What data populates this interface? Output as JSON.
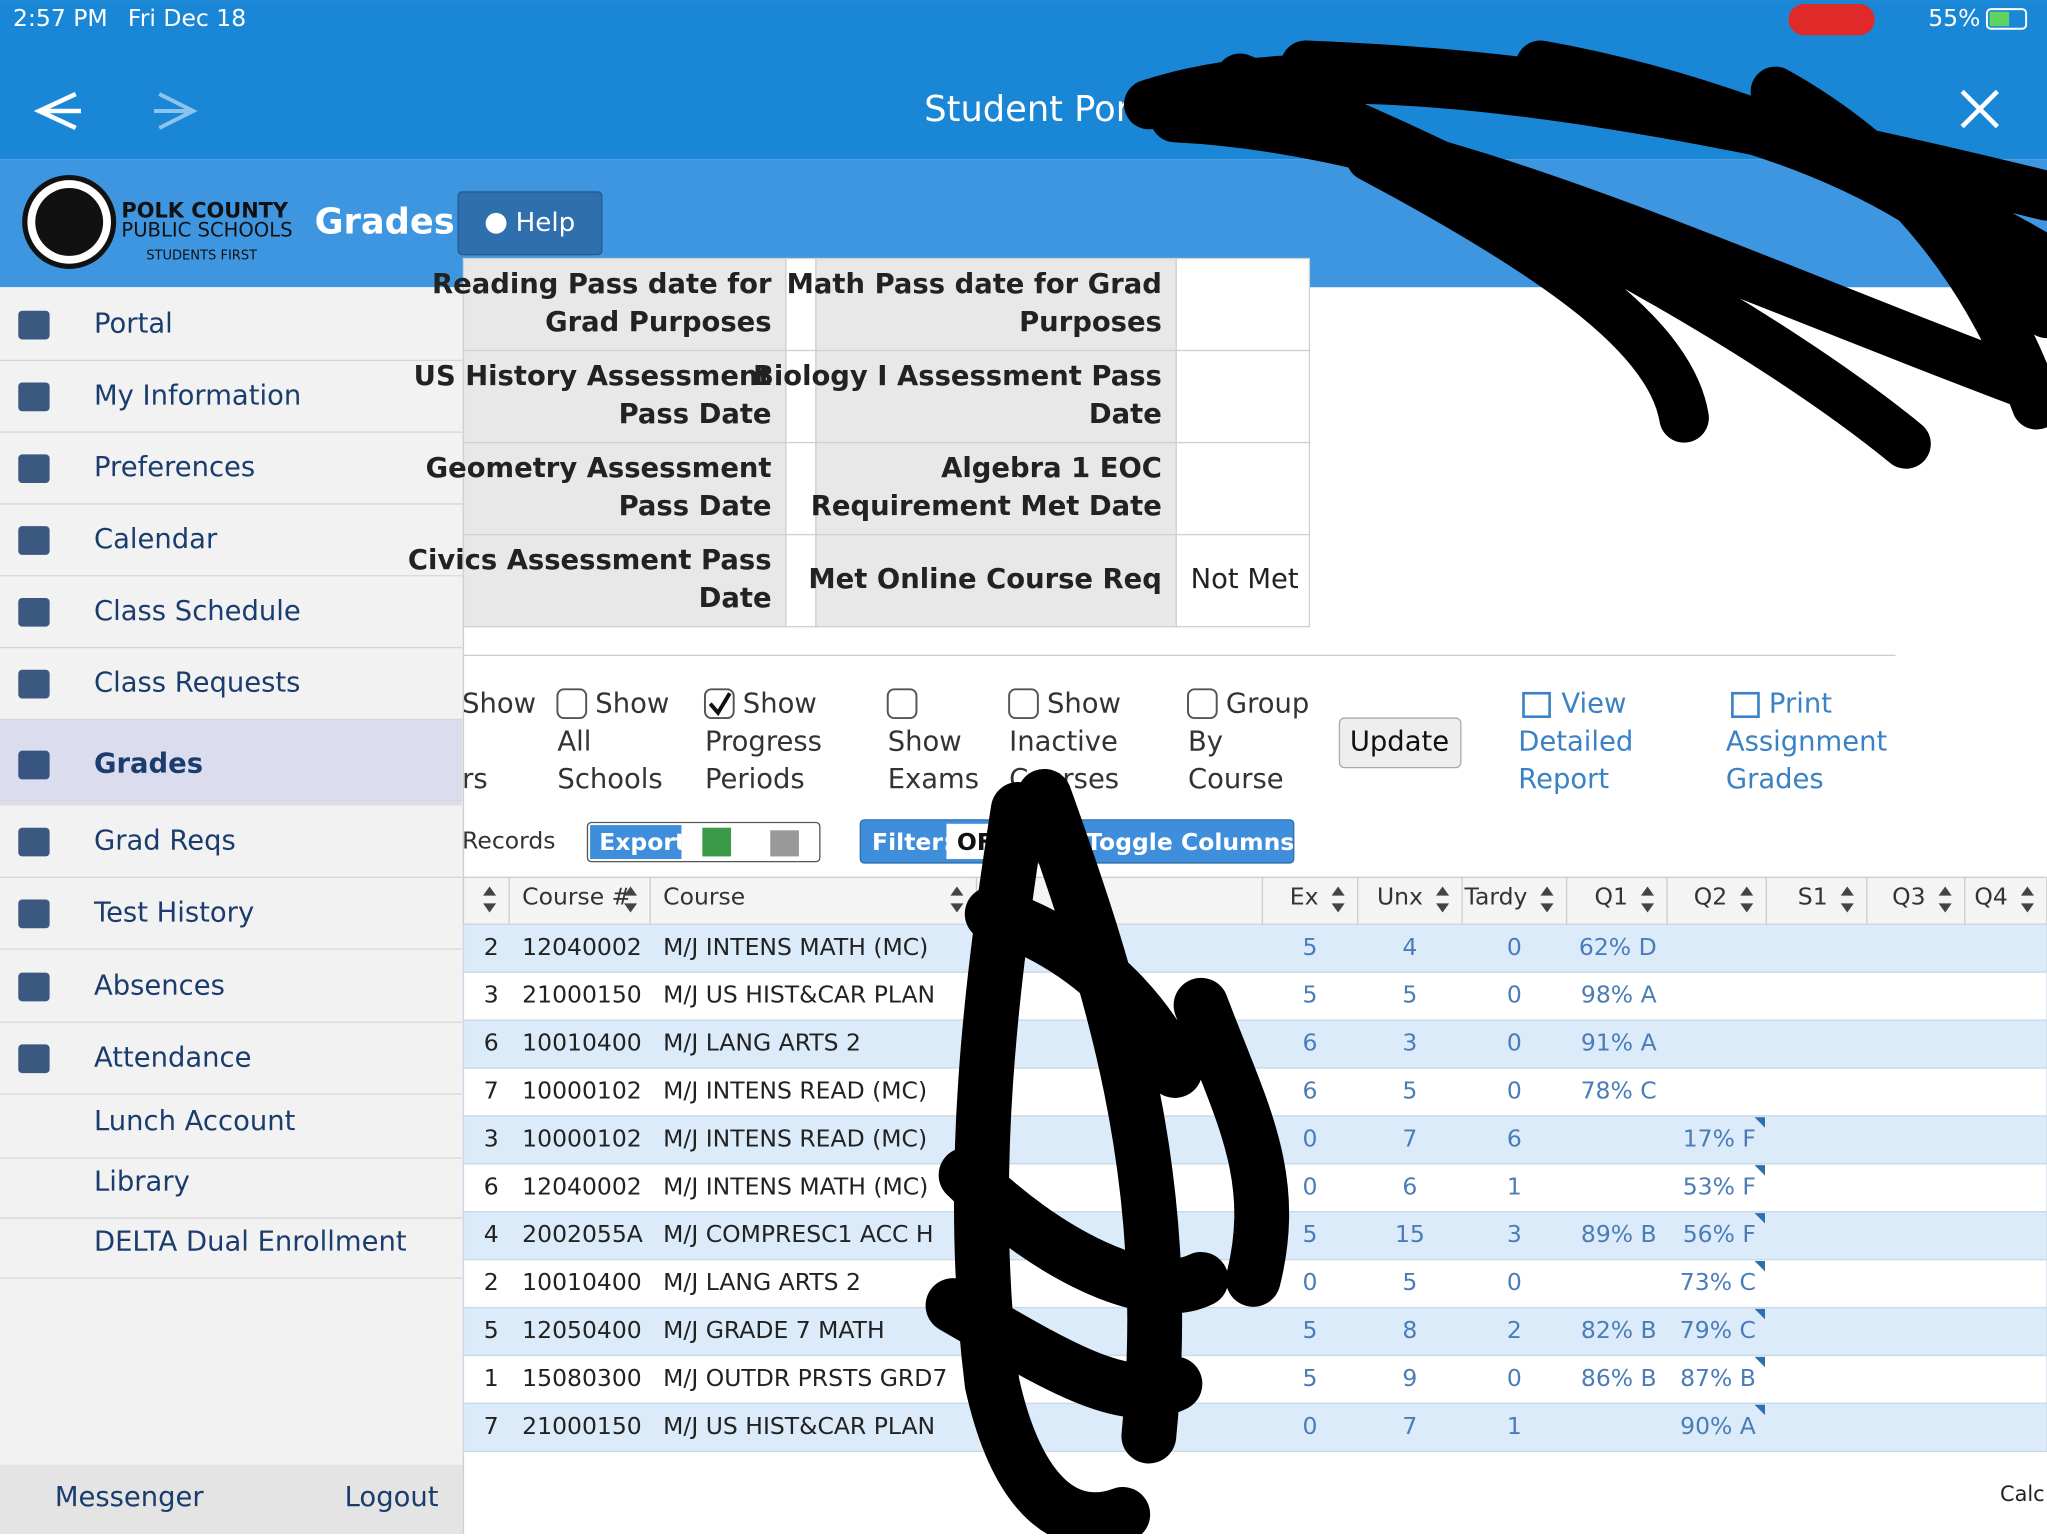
{
  "status": {
    "time": "2:57 PM",
    "date": "Fri Dec 18",
    "battery": "55%"
  },
  "header": {
    "title": "Student Porta"
  },
  "brand": {
    "line1": "POLK COUNTY",
    "line2": "PUBLIC SCHOOLS",
    "line3": "STUDENTS FIRST",
    "page_title": "Grades",
    "help": "Help"
  },
  "nav": [
    "Portal",
    "My Information",
    "Preferences",
    "Calendar",
    "Class Schedule",
    "Class Requests",
    "Grades",
    "Grad Reqs",
    "Test History",
    "Absences",
    "Attendance",
    "Lunch Account",
    "Library",
    "DELTA Dual Enrollment"
  ],
  "nav_active": 6,
  "footer": {
    "messenger": "Messenger",
    "logout": "Logout"
  },
  "assessments": [
    {
      "left": [
        "Reading Pass date for",
        "Grad Purposes"
      ],
      "right": [
        "Math Pass date for Grad",
        "Purposes"
      ],
      "right_value": null
    },
    {
      "left": [
        "US History Assessment",
        "Pass Date"
      ],
      "right": [
        "Biology I Assessment Pass",
        "Date"
      ],
      "right_value": null
    },
    {
      "left": [
        "Geometry Assessment",
        "Pass Date"
      ],
      "right": [
        "Algebra 1 EOC",
        "Requirement Met Date"
      ],
      "right_value": null
    },
    {
      "left": [
        "Civics Assessment Pass",
        "Date"
      ],
      "right": [
        "Met Online Course Req"
      ],
      "right_value": "Not Met"
    }
  ],
  "options": [
    {
      "lines": [
        "Show",
        "rs"
      ],
      "checked": null
    },
    {
      "lines": [
        "Show",
        "All",
        "Schools"
      ],
      "checked": false
    },
    {
      "lines": [
        "Show",
        "Progress",
        "Periods"
      ],
      "checked": true
    },
    {
      "lines": [
        "Show",
        "Exams"
      ],
      "checked": false
    },
    {
      "lines": [
        "Show",
        "Inactive",
        "Courses"
      ],
      "checked": false
    },
    {
      "lines": [
        "Group",
        "By",
        "Course"
      ],
      "checked": false
    }
  ],
  "update": "Update",
  "links": [
    [
      "View",
      "Detailed",
      "Report"
    ],
    [
      "Print",
      "Assignment",
      "Grades"
    ]
  ],
  "toolbar": {
    "records": "Records",
    "export": "Export",
    "filter": "Filter:",
    "filter_state": "OFF",
    "toggle": "Toggle Columns"
  },
  "grades": {
    "headers": [
      "Course #",
      "Course",
      "Ex",
      "Unx",
      "Tardy",
      "Q1",
      "Q2",
      "S1",
      "Q3",
      "Q4"
    ],
    "rows": [
      [
        2,
        "12040002",
        "M/J INTENS MATH (MC)",
        5,
        4,
        0,
        "62% D",
        null
      ],
      [
        3,
        "21000150",
        "M/J US HIST&CAR PLAN",
        5,
        5,
        0,
        "98% A",
        null
      ],
      [
        6,
        "10010400",
        "M/J LANG ARTS 2",
        6,
        3,
        0,
        "91% A",
        null
      ],
      [
        7,
        "10000102",
        "M/J INTENS READ (MC)",
        6,
        5,
        0,
        "78% C",
        null
      ],
      [
        3,
        "10000102",
        "M/J INTENS READ (MC)",
        0,
        7,
        6,
        null,
        "17% F"
      ],
      [
        6,
        "12040002",
        "M/J INTENS MATH (MC)",
        0,
        6,
        1,
        null,
        "53% F"
      ],
      [
        4,
        "2002055A",
        "M/J COMPRESC1 ACC H",
        5,
        15,
        3,
        "89% B",
        "56% F"
      ],
      [
        2,
        "10010400",
        "M/J LANG ARTS 2",
        0,
        5,
        0,
        null,
        "73% C"
      ],
      [
        5,
        "12050400",
        "M/J GRADE 7 MATH",
        5,
        8,
        2,
        "82% B",
        "79% C"
      ],
      [
        1,
        "15080300",
        "M/J OUTDR PRSTS GRD7",
        5,
        9,
        0,
        "86% B",
        "87% B"
      ],
      [
        7,
        "21000150",
        "M/J US HIST&CAR PLAN",
        0,
        7,
        1,
        null,
        "90% A"
      ]
    ]
  },
  "calc": "Calc"
}
